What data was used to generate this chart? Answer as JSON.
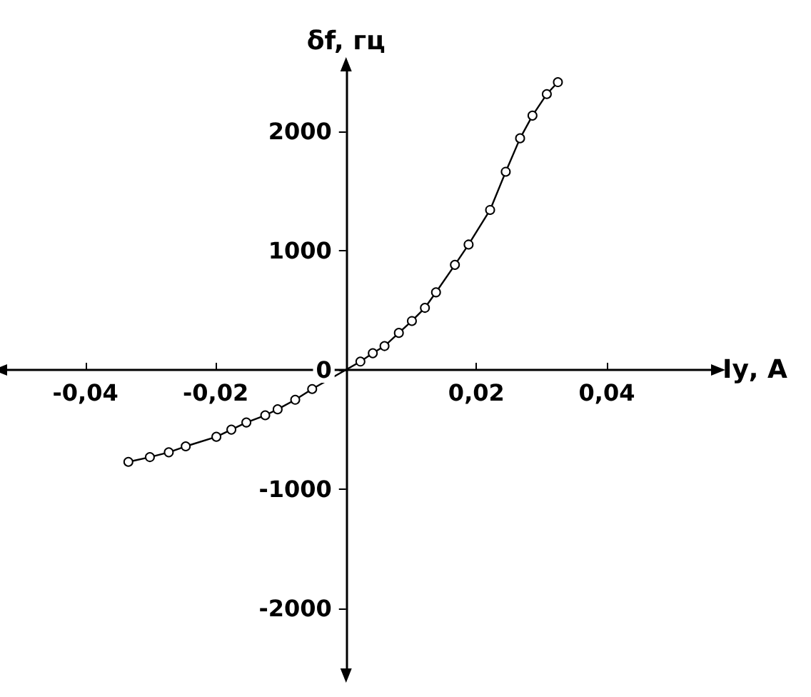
{
  "chart_data": {
    "type": "line",
    "xlabel": "Iу, A",
    "ylabel": "δf, гц",
    "marker": "circle",
    "color": "#000000",
    "x": [
      -0.0334,
      -0.0301,
      -0.0272,
      -0.0246,
      -0.0199,
      -0.0176,
      -0.0153,
      -0.0124,
      -0.0105,
      -0.0078,
      -0.0052,
      0.0022,
      0.0041,
      0.0059,
      0.0081,
      0.0101,
      0.0121,
      0.0138,
      0.0167,
      0.0188,
      0.0221,
      0.0245,
      0.0267,
      0.0286,
      0.0308,
      0.0325
    ],
    "values": [
      -770,
      -730,
      -690,
      -640,
      -560,
      -500,
      -440,
      -380,
      -330,
      -250,
      -160,
      70,
      140,
      200,
      310,
      410,
      520,
      650,
      880,
      1050,
      1340,
      1660,
      1940,
      2130,
      2310,
      2410
    ],
    "xlim": [
      -0.052,
      0.056
    ],
    "ylim": [
      -2500,
      2500
    ],
    "xticks": [
      {
        "value": -0.04,
        "label": "-0,04"
      },
      {
        "value": -0.02,
        "label": "-0,02"
      },
      {
        "value": 0.02,
        "label": "0,02"
      },
      {
        "value": 0.04,
        "label": "0,04"
      }
    ],
    "yticks": [
      -2000,
      -1000,
      0,
      1000,
      2000
    ]
  }
}
